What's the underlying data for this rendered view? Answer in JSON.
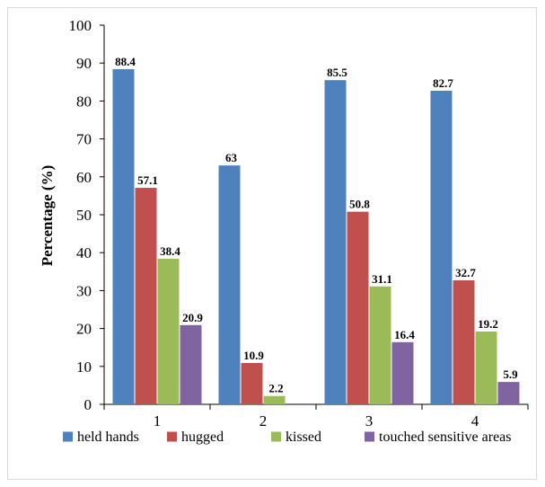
{
  "chart_data": {
    "type": "bar",
    "title": "",
    "xlabel": "",
    "ylabel": "Percentage (%)",
    "ylim": [
      0,
      100
    ],
    "ytick_step": 10,
    "categories": [
      "1",
      "2",
      "3",
      "4"
    ],
    "series": [
      {
        "name": "held hands",
        "color": "#4f81bd",
        "values": [
          88.4,
          63,
          85.5,
          82.7
        ]
      },
      {
        "name": "hugged",
        "color": "#c0504d",
        "values": [
          57.1,
          10.9,
          50.8,
          32.7
        ]
      },
      {
        "name": "kissed",
        "color": "#9bbb59",
        "values": [
          38.4,
          2.2,
          31.1,
          19.2
        ]
      },
      {
        "name": "touched sensitive areas",
        "color": "#8064a2",
        "values": [
          20.9,
          null,
          16.4,
          5.9
        ]
      }
    ],
    "grid": false,
    "legend_position": "bottom"
  }
}
